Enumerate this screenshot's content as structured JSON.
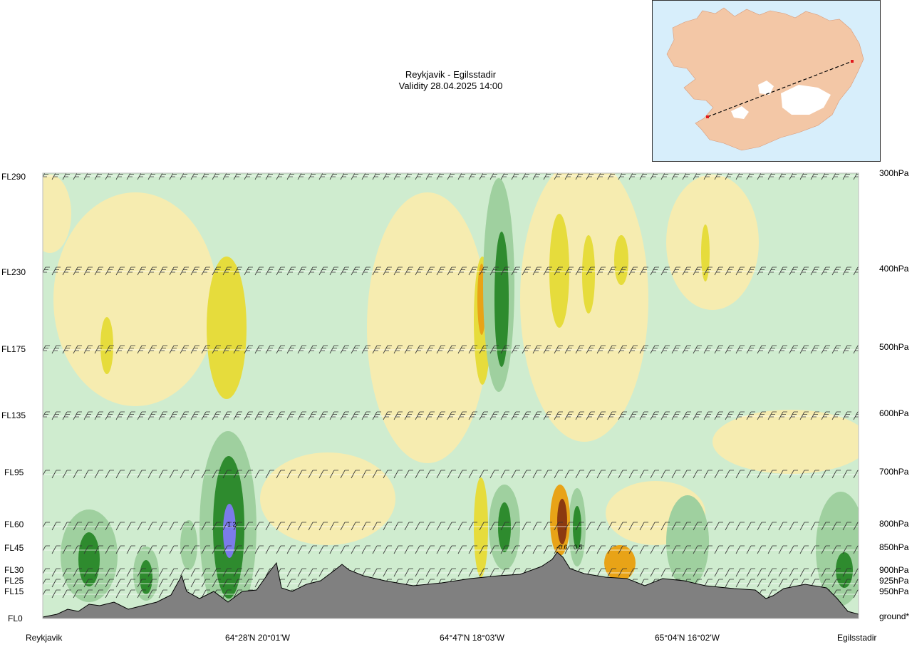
{
  "title": {
    "route": "Reykjavik - Egilsstadir",
    "validity": "Validity 28.04.2025 14:00"
  },
  "inset_map": {
    "water_color": "#d7eefb",
    "land_color": "#f3c7a6",
    "route_endpoint_color": "#e0191d"
  },
  "chart_data": {
    "type": "heatmap",
    "title": "Reykjavik - Egilsstadir",
    "subtitle": "Validity 28.04.2025 14:00",
    "xlabel": "",
    "ylabel": "",
    "left_axis_flight_levels": [
      "FL290",
      "FL230",
      "FL175",
      "FL135",
      "FL95",
      "FL60",
      "FL45",
      "FL30",
      "FL25",
      "FL15",
      "FL0"
    ],
    "right_axis_pressure_levels": [
      "300hPa",
      "400hPa",
      "500hPa",
      "600hPa",
      "700hPa",
      "800hPa",
      "850hPa",
      "900hPa",
      "925hPa",
      "950hPa",
      "ground*"
    ],
    "x_tick_labels": [
      "Reykjavik",
      "64°28'N 20°01'W",
      "64°47'N 18°03'W",
      "65°04'N 16°02'W",
      "Egilsstadir"
    ],
    "annotations": [
      "1.2",
      "-0.6",
      "0.5"
    ],
    "fill_colors": {
      "strong_positive": "#2e8b2e",
      "positive": "#9fd09f",
      "weak_positive": "#cfeccf",
      "near_zero": "#ffffff",
      "weak_negative": "#f6ecb0",
      "negative": "#e6dc3c",
      "strong_negative": "#e8a317",
      "very_strong_negative": "#8b3a10",
      "peak": "#7b7bea",
      "terrain": "#808080"
    },
    "wind_barbs": true,
    "grid": "horizontal at flight levels"
  }
}
